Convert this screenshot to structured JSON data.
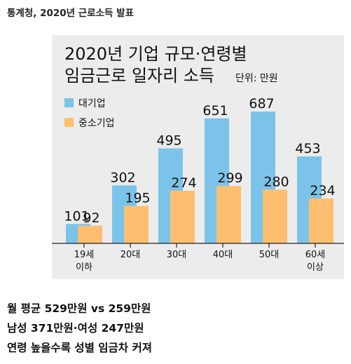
{
  "source_line": "통계청, 2020년 근로소득 발표",
  "footer": {
    "line1": "월 평균 529만원 vs 259만원",
    "line2": "남성 371만원·여성 247만원",
    "line3": "연령 높을수록 성별 임금차 커져"
  },
  "chart_data": {
    "type": "bar",
    "title": "2020년 기업 규모·연령별",
    "subtitle": "임금근로 일자리 소득",
    "unit": "단위: 만원",
    "categories": [
      "19세\n이하",
      "20대",
      "30대",
      "40대",
      "50대",
      "60세\n이상"
    ],
    "series": [
      {
        "name": "대기업",
        "values": [
          101,
          302,
          495,
          651,
          687,
          453
        ],
        "color": "#7cc3e9"
      },
      {
        "name": "중소기업",
        "values": [
          92,
          195,
          274,
          299,
          280,
          234
        ],
        "color": "#fdbf6f"
      }
    ],
    "ylim": [
      0,
      720
    ],
    "grid": false,
    "legend": "top-left",
    "background": "#ececec"
  }
}
